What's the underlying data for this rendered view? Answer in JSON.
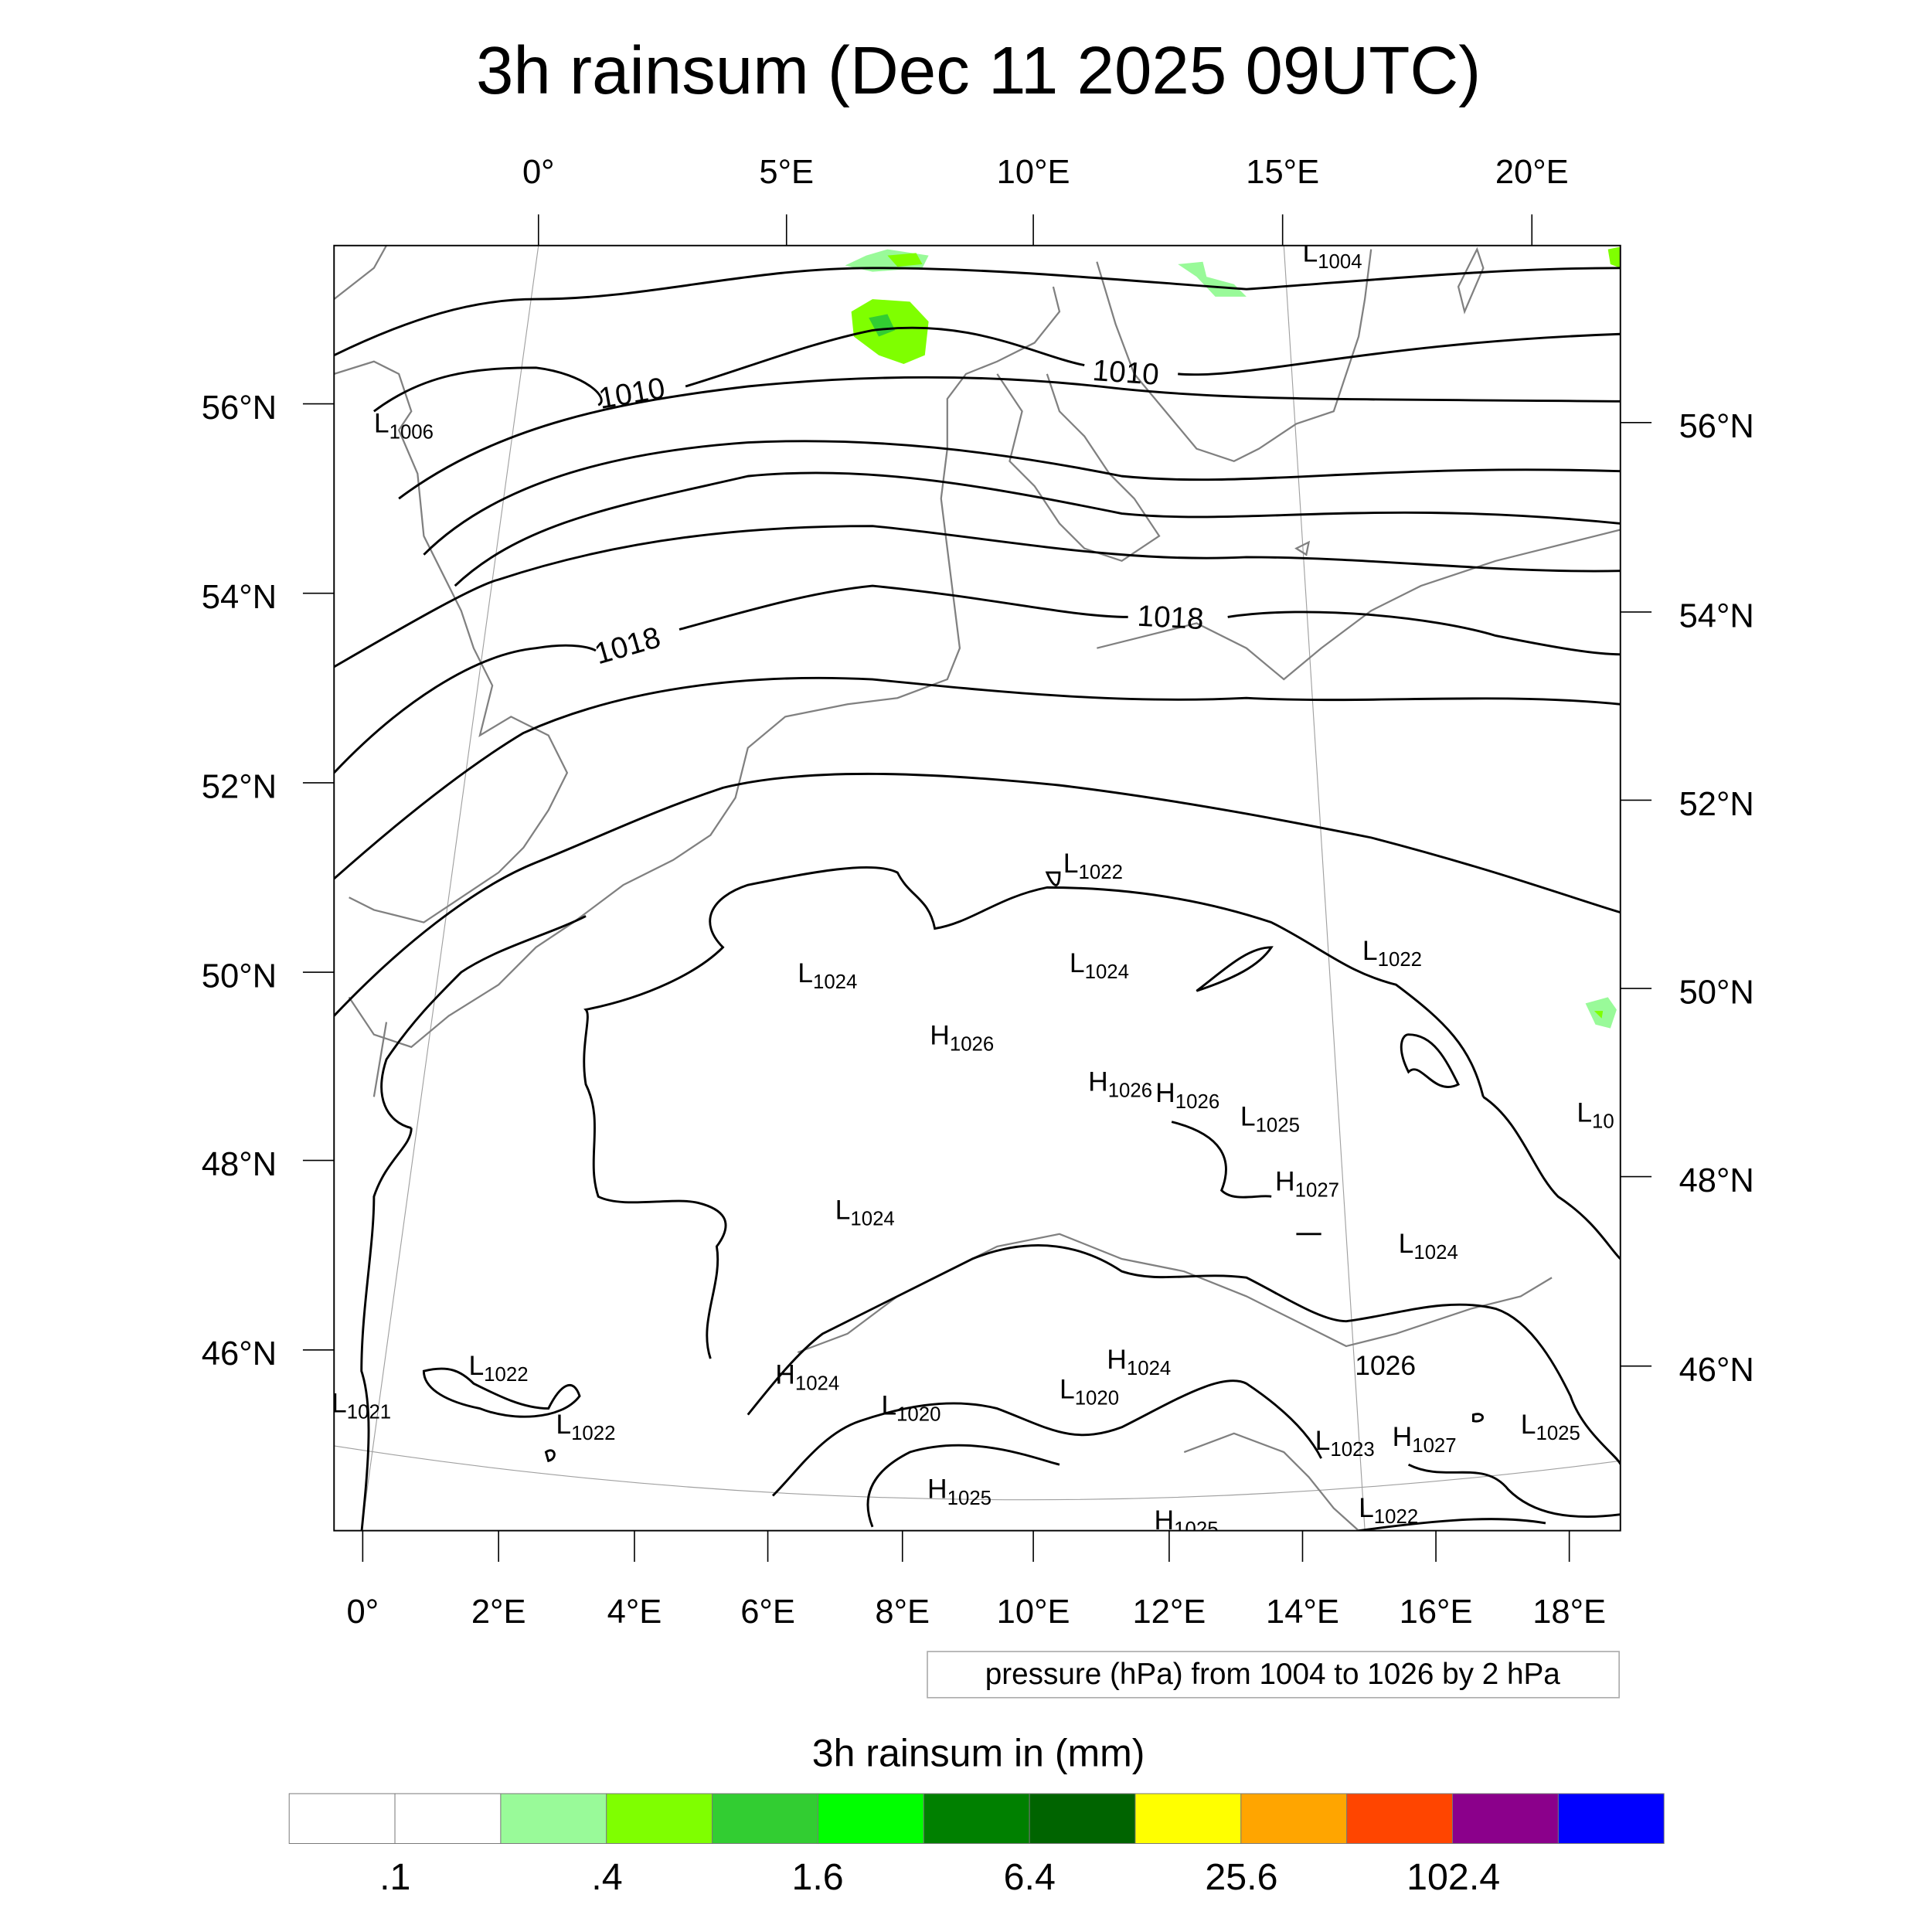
{
  "title": "3h rainsum (Dec 11 2025 09UTC)",
  "map": {
    "top_lon_labels": [
      "0°",
      "5°E",
      "10°E",
      "15°E",
      "20°E"
    ],
    "bottom_lon_labels": [
      "0°",
      "2°E",
      "4°E",
      "6°E",
      "8°E",
      "10°E",
      "12°E",
      "14°E",
      "16°E",
      "18°E"
    ],
    "left_lat_labels": [
      "56°N",
      "54°N",
      "52°N",
      "50°N",
      "48°N",
      "46°N"
    ],
    "right_lat_labels": [
      "56°N",
      "54°N",
      "52°N",
      "50°N",
      "48°N",
      "46°N"
    ],
    "isobar_labels": [
      "1010",
      "1010",
      "1018",
      "1018"
    ],
    "centers": [
      {
        "type": "L",
        "value": "1004"
      },
      {
        "type": "L",
        "value": "1006"
      },
      {
        "type": "L",
        "value": "1022"
      },
      {
        "type": "L",
        "value": "1024"
      },
      {
        "type": "L",
        "value": "1024"
      },
      {
        "type": "L",
        "value": "1022"
      },
      {
        "type": "H",
        "value": "1026"
      },
      {
        "type": "H",
        "value": "1026"
      },
      {
        "type": "H",
        "value": "1026"
      },
      {
        "type": "L",
        "value": "1025"
      },
      {
        "type": "H",
        "value": "1027"
      },
      {
        "type": "L",
        "value": "10"
      },
      {
        "type": "L",
        "value": "1024"
      },
      {
        "type": "L",
        "value": "1024"
      },
      {
        "type": "L",
        "value": "1022"
      },
      {
        "type": "L",
        "value": "1021"
      },
      {
        "type": "L",
        "value": "1022"
      },
      {
        "type": "H",
        "value": "1024"
      },
      {
        "type": "H",
        "value": "1024"
      },
      {
        "type": "L",
        "value": "1020"
      },
      {
        "type": "L",
        "value": "1020"
      },
      {
        "type": "",
        "value": "1026"
      },
      {
        "type": "L",
        "value": "1023"
      },
      {
        "type": "H",
        "value": "1027"
      },
      {
        "type": "L",
        "value": "1025"
      },
      {
        "type": "H",
        "value": "1025"
      },
      {
        "type": "H",
        "value": "1025"
      },
      {
        "type": "L",
        "value": "1022"
      }
    ],
    "contour_info": "pressure (hPa) from 1004 to 1026 by 2 hPa",
    "rain_colors": {
      "light": "#99fa99",
      "mid": "#7fff00",
      "dark": "#32cd32",
      "deep": "#008000"
    }
  },
  "colorbar": {
    "title": "3h rainsum in (mm)",
    "colors": [
      "#ffffff",
      "#ffffff",
      "#99fa99",
      "#7fff00",
      "#32cd32",
      "#00ff00",
      "#008000",
      "#006400",
      "#ffff00",
      "#ffa500",
      "#ff4500",
      "#8b008b",
      "#0000ff"
    ],
    "labels": [
      ".1",
      ".4",
      "1.6",
      "6.4",
      "25.6",
      "102.4"
    ]
  }
}
